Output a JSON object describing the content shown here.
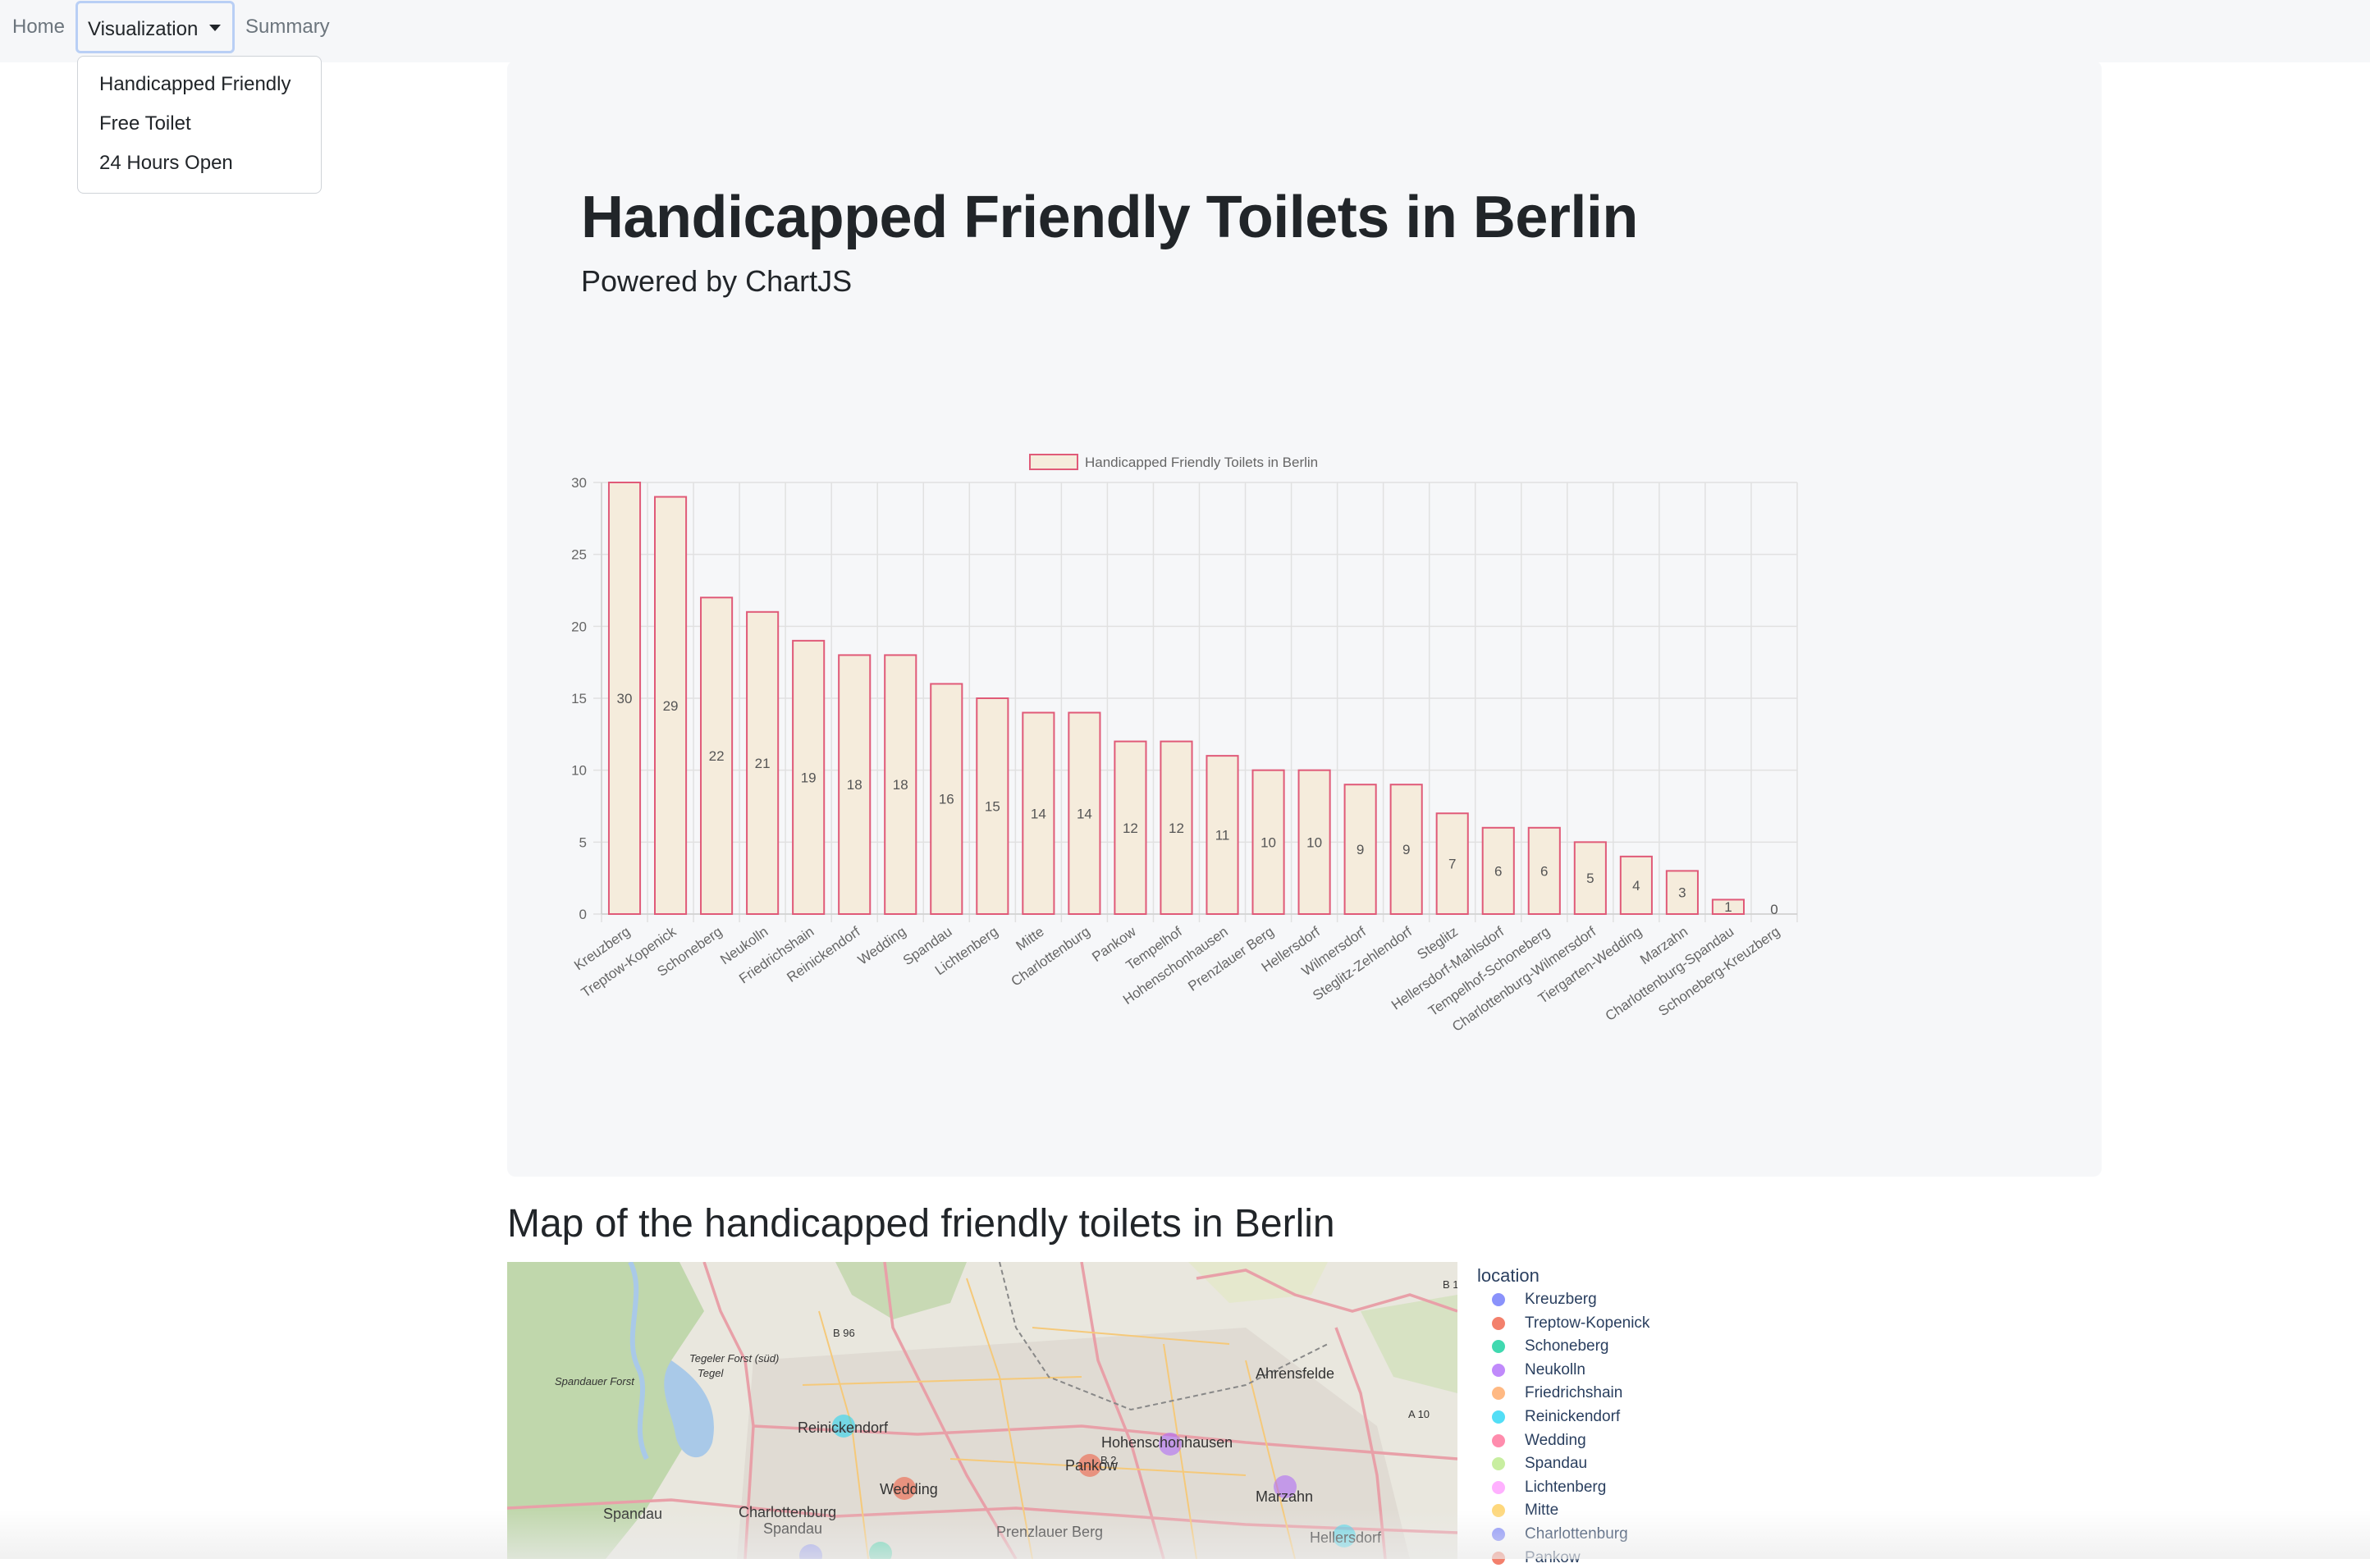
{
  "navbar": {
    "home": "Home",
    "visualization": "Visualization",
    "summary": "Summary",
    "dropdown": [
      "Handicapped Friendly",
      "Free Toilet",
      "24 Hours Open"
    ]
  },
  "header": {
    "title": "Handicapped Friendly Toilets in Berlin",
    "subtitle": "Powered by ChartJS"
  },
  "chart_data": {
    "type": "bar",
    "legend_label": "Handicapped Friendly Toilets in Berlin",
    "legend_position": "top",
    "categories": [
      "Kreuzberg",
      "Treptow-Kopenick",
      "Schoneberg",
      "Neukolln",
      "Friedrichshain",
      "Reinickendorf",
      "Wedding",
      "Spandau",
      "Lichtenberg",
      "Mitte",
      "Charlottenburg",
      "Pankow",
      "Tempelhof",
      "Hohenschonhausen",
      "Prenzlauer Berg",
      "Hellersdorf",
      "Wilmersdorf",
      "Steglitz-Zehlendorf",
      "Steglitz",
      "Hellersdorf-Mahlsdorf",
      "Tempelhof-Schoneberg",
      "Charlottenburg-Wilmersdorf",
      "Tiergarten-Wedding",
      "Marzahn",
      "Charlottenburg-Spandau",
      "Schoneberg-Kreuzberg"
    ],
    "values": [
      30,
      29,
      22,
      21,
      19,
      18,
      18,
      16,
      15,
      14,
      14,
      12,
      12,
      11,
      10,
      10,
      9,
      9,
      7,
      6,
      6,
      5,
      4,
      3,
      1,
      0
    ],
    "ylim": [
      0,
      30
    ],
    "yticks": [
      "0",
      "5",
      "10",
      "15",
      "20",
      "25",
      "30"
    ],
    "grid": true,
    "colors": {
      "fill": "#f5ecdc",
      "stroke": "#e05a78"
    }
  },
  "map": {
    "heading": "Map of the handicapped friendly toilets in Berlin",
    "labels": [
      "Reinickendorf",
      "Hohenschonhausen",
      "Ahrensfelde",
      "Pankow",
      "Wedding",
      "Spandau",
      "Charlottenburg",
      "Spandau",
      "Prenzlauer Berg",
      "Marzahn",
      "Hellersdorf",
      "Spandauer Forst",
      "Tegeler Forst (süd)",
      "Tegel",
      "B 96",
      "B 1",
      "A 10",
      "B 2"
    ],
    "legend_title": "location",
    "legend": [
      {
        "name": "Kreuzberg",
        "color": "#636efa"
      },
      {
        "name": "Treptow-Kopenick",
        "color": "#ef553b"
      },
      {
        "name": "Schoneberg",
        "color": "#00cc96"
      },
      {
        "name": "Neukolln",
        "color": "#ab63fa"
      },
      {
        "name": "Friedrichshain",
        "color": "#ffa15a"
      },
      {
        "name": "Reinickendorf",
        "color": "#19d3f3"
      },
      {
        "name": "Wedding",
        "color": "#ff6692"
      },
      {
        "name": "Spandau",
        "color": "#b6e880"
      },
      {
        "name": "Lichtenberg",
        "color": "#ff97ff"
      },
      {
        "name": "Mitte",
        "color": "#fecb52"
      },
      {
        "name": "Charlottenburg",
        "color": "#636efa"
      },
      {
        "name": "Pankow",
        "color": "#ef553b"
      }
    ]
  }
}
